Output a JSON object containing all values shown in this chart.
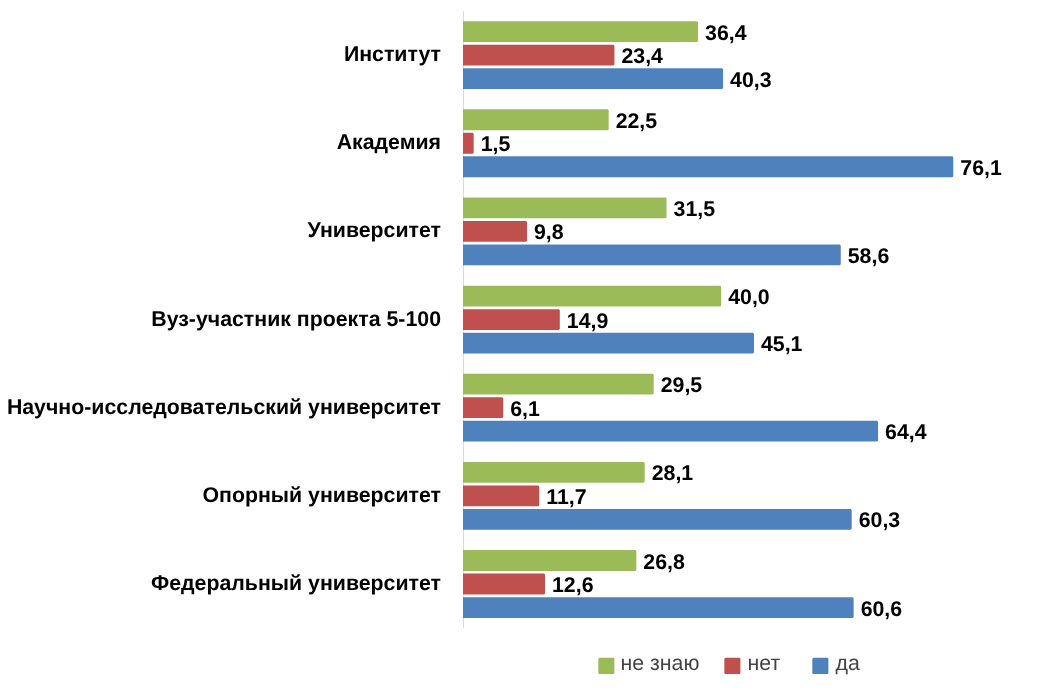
{
  "chart_data": {
    "type": "bar",
    "orientation": "horizontal",
    "categories": [
      "Институт",
      "Академия",
      "Университет",
      "Вуз-участник проекта 5-100",
      "Научно-исследовательский университет",
      "Опорный университет",
      "Федеральный университет"
    ],
    "series": [
      {
        "name": "не знаю",
        "color": "#9bbb59",
        "values": [
          36.4,
          22.5,
          31.5,
          40.0,
          29.5,
          28.1,
          26.8
        ],
        "value_labels": [
          "36,4",
          "22,5",
          "31,5",
          "40,0",
          "29,5",
          "28,1",
          "26,8"
        ]
      },
      {
        "name": "нет",
        "color": "#c0504d",
        "values": [
          23.4,
          1.5,
          9.8,
          14.9,
          6.1,
          11.7,
          12.6
        ],
        "value_labels": [
          "23,4",
          "1,5",
          "9,8",
          "14,9",
          "6,1",
          "11,7",
          "12,6"
        ]
      },
      {
        "name": "да",
        "color": "#4f81bd",
        "values": [
          40.3,
          76.1,
          58.6,
          45.1,
          64.4,
          60.3,
          60.6
        ],
        "value_labels": [
          "40,3",
          "76,1",
          "58,6",
          "45,1",
          "64,4",
          "60,3",
          "60,6"
        ]
      }
    ],
    "legend": "bottom",
    "grid": false
  }
}
